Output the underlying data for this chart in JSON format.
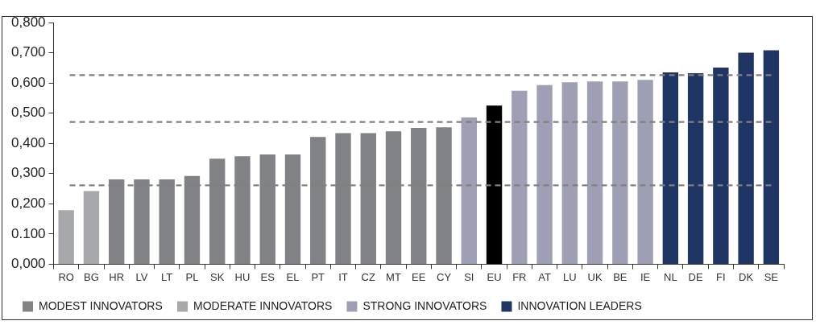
{
  "chart_data": {
    "type": "bar",
    "categories": [
      "RO",
      "BG",
      "HR",
      "LV",
      "LT",
      "PL",
      "SK",
      "HU",
      "ES",
      "EL",
      "PT",
      "IT",
      "CZ",
      "MT",
      "EE",
      "CY",
      "SI",
      "EU",
      "FR",
      "AT",
      "LU",
      "UK",
      "BE",
      "IE",
      "NL",
      "DE",
      "FI",
      "DK",
      "SE"
    ],
    "series": [
      {
        "name": "MODEST INNOVATORS",
        "color": "#808285",
        "values": [
          null,
          null,
          0.281,
          0.281,
          0.281,
          0.292,
          0.349,
          0.357,
          0.363,
          0.363,
          0.421,
          0.434,
          0.434,
          0.44,
          0.451,
          0.453,
          null,
          null,
          null,
          null,
          null,
          null,
          null,
          null,
          null,
          null,
          null,
          null,
          null
        ]
      },
      {
        "name": "MODERATE INNOVATORS",
        "color": "#a7a8ac",
        "values": [
          0.179,
          0.242,
          null,
          null,
          null,
          null,
          null,
          null,
          null,
          null,
          null,
          null,
          null,
          null,
          null,
          null,
          null,
          null,
          null,
          null,
          null,
          null,
          null,
          null,
          null,
          null,
          null,
          null,
          null
        ]
      },
      {
        "name": "STRONG INNOVATORS",
        "color": "#9e9fb5",
        "values": [
          null,
          null,
          null,
          null,
          null,
          null,
          null,
          null,
          null,
          null,
          null,
          null,
          null,
          null,
          null,
          null,
          0.486,
          null,
          0.574,
          0.593,
          0.602,
          0.605,
          0.605,
          0.61,
          null,
          null,
          null,
          null,
          null
        ]
      },
      {
        "name": "INNOVATION LEADERS",
        "color": "#1f3564",
        "values": [
          null,
          null,
          null,
          null,
          null,
          null,
          null,
          null,
          null,
          null,
          null,
          null,
          null,
          null,
          null,
          null,
          null,
          null,
          null,
          null,
          null,
          null,
          null,
          null,
          0.635,
          0.632,
          0.651,
          0.7,
          0.708
        ]
      },
      {
        "color": "#000000",
        "values": [
          null,
          null,
          null,
          null,
          null,
          null,
          null,
          null,
          null,
          null,
          null,
          null,
          null,
          null,
          null,
          null,
          null,
          0.525,
          null,
          null,
          null,
          null,
          null,
          null,
          null,
          null,
          null,
          null,
          null
        ]
      }
    ],
    "ylim": [
      0,
      0.8
    ],
    "yticks": [
      {
        "value": 0,
        "label": "0,000"
      },
      {
        "value": 0.1,
        "label": "0.100"
      },
      {
        "value": 0.2,
        "label": "0,200"
      },
      {
        "value": 0.3,
        "label": "0,300"
      },
      {
        "value": 0.4,
        "label": "0,400"
      },
      {
        "value": 0.5,
        "label": "0,500"
      },
      {
        "value": 0.6,
        "label": "0,600"
      },
      {
        "value": 0.7,
        "label": "0,700"
      },
      {
        "value": 0.8,
        "label": "0,800"
      }
    ],
    "ref_lines": [
      {
        "axis": "y",
        "value": 0.626,
        "color": "#808080",
        "line_style": "dashed"
      },
      {
        "axis": "y",
        "value": 0.471,
        "color": "#808080",
        "line_style": "dashed"
      },
      {
        "axis": "y",
        "value": 0.261,
        "color": "#808080",
        "line_style": "dashed"
      }
    ],
    "grid": false,
    "legend": "bottom left"
  }
}
